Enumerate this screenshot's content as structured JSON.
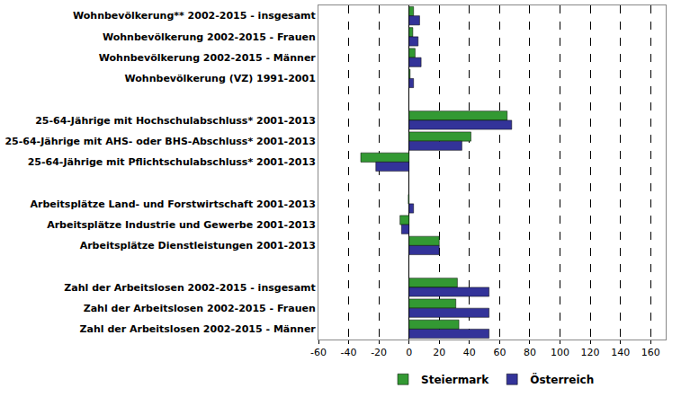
{
  "chart_data": {
    "type": "bar",
    "orientation": "horizontal",
    "categories": [
      "Wohnbevölkerung** 2002-2015 - insgesamt",
      "Wohnbevölkerung 2002-2015 - Frauen",
      "Wohnbevölkerung 2002-2015 - Männer",
      "Wohnbevölkerung (VZ) 1991-2001",
      null,
      "25-64-Jährige mit Hochschulabschluss* 2001-2013",
      "25-64-Jährige mit AHS- oder BHS-Abschluss* 2001-2013",
      "25-64-Jährige mit Pflichtschulabschluss* 2001-2013",
      null,
      "Arbeitsplätze Land- und Forstwirtschaft 2001-2013",
      "Arbeitsplätze Industrie und Gewerbe 2001-2013",
      "Arbeitsplätze Dienstleistungen 2001-2013",
      null,
      "Zahl der Arbeitslosen 2002-2015 - insgesamt",
      "Zahl der Arbeitslosen 2002-2015 - Frauen",
      "Zahl der Arbeitslosen 2002-2015 - Männer"
    ],
    "series": [
      {
        "name": "Steiermark",
        "color": "#339933",
        "values": [
          3,
          2.5,
          4,
          0.7,
          null,
          65,
          41,
          -32,
          null,
          -0.5,
          -6,
          20,
          null,
          32,
          31,
          33
        ]
      },
      {
        "name": "Österreich",
        "color": "#333399",
        "values": [
          7,
          6,
          8,
          3,
          null,
          68,
          35,
          -22,
          null,
          3,
          -5,
          20,
          null,
          53,
          53,
          53
        ]
      }
    ],
    "xlim": [
      -60,
      170
    ],
    "xticks": [
      -60,
      -40,
      -20,
      0,
      20,
      40,
      60,
      80,
      100,
      120,
      140,
      160
    ],
    "grid": true,
    "legend": "bottom"
  }
}
